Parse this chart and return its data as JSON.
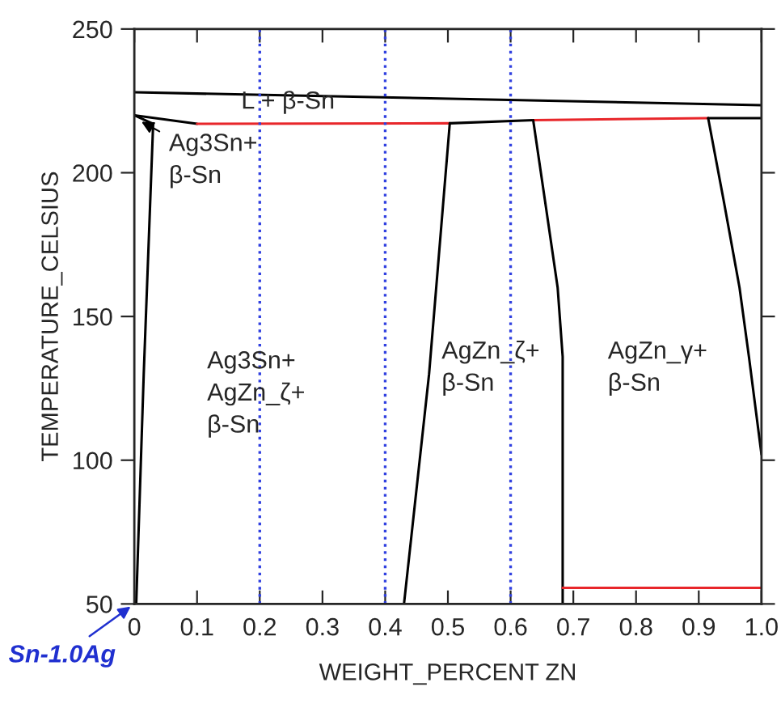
{
  "chart_data": {
    "type": "line",
    "xlabel": "WEIGHT_PERCENT ZN",
    "ylabel": "TEMPERATURE_CELSIUS",
    "xlim": [
      0,
      1.0
    ],
    "ylim": [
      50,
      250
    ],
    "xticks": [
      0,
      0.1,
      0.2,
      0.3,
      0.4,
      0.5,
      0.6,
      0.7,
      0.8,
      0.9,
      {
        "value": 1.0,
        "label": "1.0"
      }
    ],
    "yticks": [
      50,
      100,
      150,
      200,
      250
    ],
    "grid": false,
    "marker": "none",
    "line_style": "solid",
    "series": [
      {
        "color": "#000000",
        "x": [
          0,
          1.0
        ],
        "values": [
          228,
          223.5
        ]
      },
      {
        "color": "#000000",
        "x": [
          0,
          0.1
        ],
        "values": [
          220,
          217
        ]
      },
      {
        "color": "#e8262a",
        "x": [
          0.1,
          0.503
        ],
        "values": [
          217,
          217.2
        ]
      },
      {
        "color": "#000000",
        "x": [
          0.503,
          0.636
        ],
        "values": [
          217.2,
          218.3
        ]
      },
      {
        "color": "#e8262a",
        "x": [
          0.636,
          0.915
        ],
        "values": [
          218.3,
          219
        ]
      },
      {
        "color": "#000000",
        "x": [
          0.915,
          1.0
        ],
        "values": [
          219,
          219
        ]
      },
      {
        "color": "#000000",
        "x": [
          0,
          0.03,
          0.015,
          0.003
        ],
        "values": [
          220,
          217,
          130,
          50
        ]
      },
      {
        "color": "#000000",
        "x": [
          0.503,
          0.47,
          0.43
        ],
        "values": [
          217.2,
          130,
          50
        ]
      },
      {
        "color": "#000000",
        "x": [
          0.636,
          0.655,
          0.675,
          0.683,
          0.683
        ],
        "values": [
          218.3,
          190,
          160,
          136,
          50
        ]
      },
      {
        "color": "#000000",
        "x": [
          0.915,
          0.94,
          0.965,
          0.98,
          1.0
        ],
        "values": [
          219,
          190,
          160,
          136,
          102
        ]
      },
      {
        "color": "#e8262a",
        "x": [
          0.683,
          1.0
        ],
        "values": [
          55.6,
          55.6
        ]
      }
    ],
    "ref_lines": [
      {
        "axis": "x",
        "value": 0.2,
        "color": "#3040e0",
        "line_style": "dotted"
      },
      {
        "axis": "x",
        "value": 0.4,
        "color": "#3040e0",
        "line_style": "dotted"
      },
      {
        "axis": "x",
        "value": 0.6,
        "color": "#3040e0",
        "line_style": "dotted"
      }
    ],
    "annotations": [
      {
        "text": "L + β-Sn",
        "x": 0.245,
        "y": 224.5
      },
      {
        "text": "Ag3Sn+\nβ-Sn",
        "x": 0.005,
        "y": 218.5
      },
      "Ag3Sn+\nAgZn_ζ+\nβ-Sn",
      "AgZn_ζ+\nβ-Sn",
      "AgZn_γ+\nβ-Sn",
      {
        "text": "Sn-1.0Ag",
        "x": 0,
        "y": 50
      }
    ]
  }
}
